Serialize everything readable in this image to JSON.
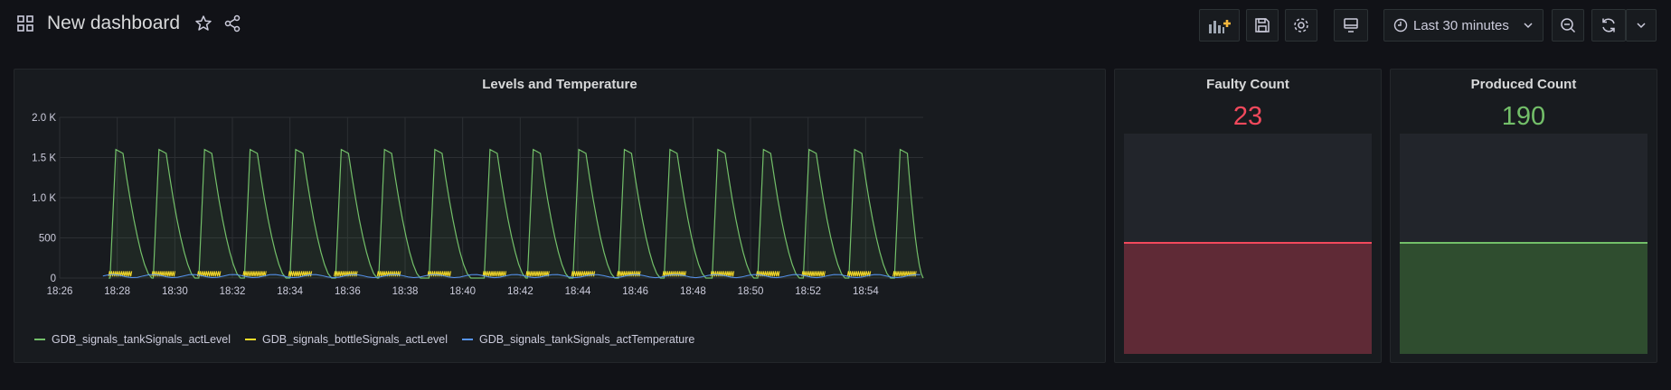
{
  "header": {
    "title": "New dashboard",
    "time_range": "Last 30 minutes"
  },
  "panels": {
    "levels": {
      "title": "Levels and Temperature",
      "legend": [
        {
          "name": "GDB_signals_tankSignals_actLevel",
          "color": "#73bf69"
        },
        {
          "name": "GDB_signals_bottleSignals_actLevel",
          "color": "#fade2a"
        },
        {
          "name": "GDB_signals_tankSignals_actTemperature",
          "color": "#5794f2"
        }
      ]
    },
    "faulty": {
      "title": "Faulty Count",
      "value": "23",
      "color": "#f2495c",
      "fill_fraction": 0.5
    },
    "produced": {
      "title": "Produced Count",
      "value": "190",
      "color": "#73bf69",
      "fill_fraction": 0.5
    }
  },
  "chart_data": {
    "type": "line",
    "y_ticks": [
      "0",
      "500",
      "1.0 K",
      "1.5 K",
      "2.0 K"
    ],
    "ylim": [
      0,
      2000
    ],
    "x_ticks": [
      "18:26",
      "18:28",
      "18:30",
      "18:32",
      "18:34",
      "18:36",
      "18:38",
      "18:40",
      "18:42",
      "18:44",
      "18:46",
      "18:48",
      "18:50",
      "18:52",
      "18:54"
    ],
    "xlim": [
      "18:26",
      "18:56"
    ],
    "grid": true,
    "legend_position": "bottom",
    "series": [
      {
        "name": "GDB_signals_tankSignals_actLevel",
        "color": "#73bf69",
        "cycle_start_times": [
          "18:27:45",
          "18:29:15",
          "18:30:50",
          "18:32:25",
          "18:34:00",
          "18:35:35",
          "18:37:05",
          "18:38:50",
          "18:40:45",
          "18:42:15",
          "18:43:50",
          "18:45:25",
          "18:47:00",
          "18:48:40",
          "18:50:15",
          "18:51:50",
          "18:53:25",
          "18:55:00"
        ],
        "peak": 1600
      },
      {
        "name": "GDB_signals_bottleSignals_actLevel",
        "color": "#fade2a",
        "range": [
          0,
          100
        ]
      },
      {
        "name": "GDB_signals_tankSignals_actTemperature",
        "color": "#5794f2",
        "range": [
          0,
          60
        ]
      }
    ]
  }
}
